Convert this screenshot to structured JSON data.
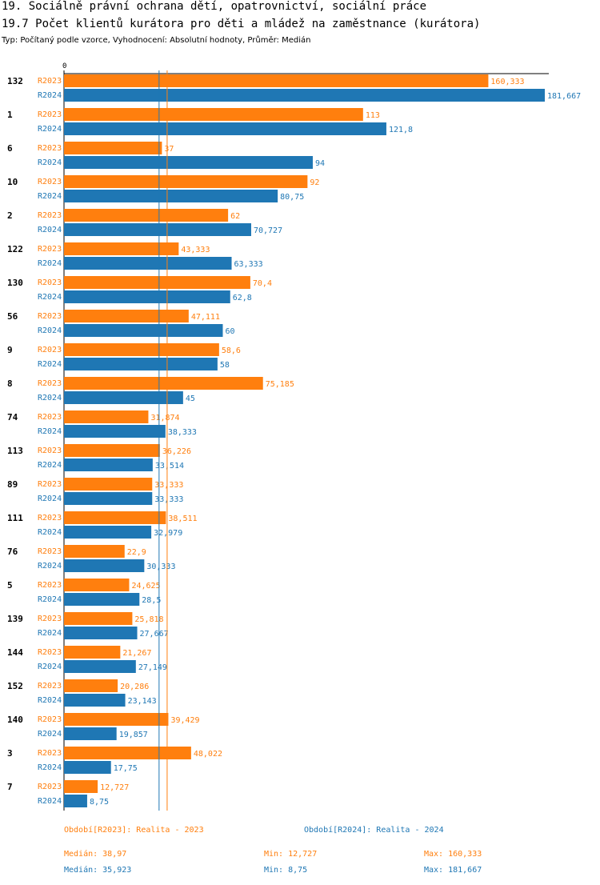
{
  "header": {
    "title1": "19. Sociálně právní ochrana dětí, opatrovnictví, sociální práce",
    "title2": "19.7 Počet klientů kurátora pro děti a mládež na zaměstnance (kurátora)",
    "subtitle": "Typ: Počítaný podle vzorce, Vyhodnocení: Absolutní hodnoty, Průměr: Medián"
  },
  "colors": {
    "r2023": "#ff7f0e",
    "r2024": "#1f77b4"
  },
  "chart_data": {
    "type": "bar",
    "orientation": "horizontal",
    "axis_zero_label": "0",
    "categories": [
      "132",
      "1",
      "6",
      "10",
      "2",
      "122",
      "130",
      "56",
      "9",
      "8",
      "74",
      "113",
      "89",
      "111",
      "76",
      "5",
      "139",
      "144",
      "152",
      "140",
      "3",
      "7"
    ],
    "series": [
      {
        "name": "R2023",
        "values": [
          160.333,
          113,
          37,
          92,
          62,
          43.333,
          70.4,
          47.111,
          58.6,
          75.185,
          31.874,
          36.226,
          33.333,
          38.511,
          22.9,
          24.625,
          25.818,
          21.267,
          20.286,
          39.429,
          48.022,
          12.727
        ],
        "labels": [
          "160,333",
          "113",
          "37",
          "92",
          "62",
          "43,333",
          "70,4",
          "47,111",
          "58,6",
          "75,185",
          "31,874",
          "36,226",
          "33,333",
          "38,511",
          "22,9",
          "24,625",
          "25,818",
          "21,267",
          "20,286",
          "39,429",
          "48,022",
          "12,727"
        ]
      },
      {
        "name": "R2024",
        "values": [
          181.667,
          121.8,
          94,
          80.75,
          70.727,
          63.333,
          62.8,
          60,
          58,
          45,
          38.333,
          33.514,
          33.333,
          32.979,
          30.333,
          28.5,
          27.667,
          27.149,
          23.143,
          19.857,
          17.75,
          8.75
        ],
        "labels": [
          "181,667",
          "121,8",
          "94",
          "80,75",
          "70,727",
          "63,333",
          "62,8",
          "60",
          "58",
          "45",
          "38,333",
          "33,514",
          "33,333",
          "32,979",
          "30,333",
          "28,5",
          "27,667",
          "27,149",
          "23,143",
          "19,857",
          "17,75",
          "8,75"
        ]
      }
    ],
    "median_lines": {
      "R2023": 38.97,
      "R2024": 35.923
    },
    "xlim": [
      0,
      181.667
    ]
  },
  "legend": {
    "r2023_period": "Období[R2023]: Realita - 2023",
    "r2024_period": "Období[R2024]: Realita - 2024",
    "r2023_median": "Medián: 38,97",
    "r2023_min": "Min: 12,727",
    "r2023_max": "Max: 160,333",
    "r2024_median": "Medián: 35,923",
    "r2024_min": "Min: 8,75",
    "r2024_max": "Max: 181,667"
  }
}
